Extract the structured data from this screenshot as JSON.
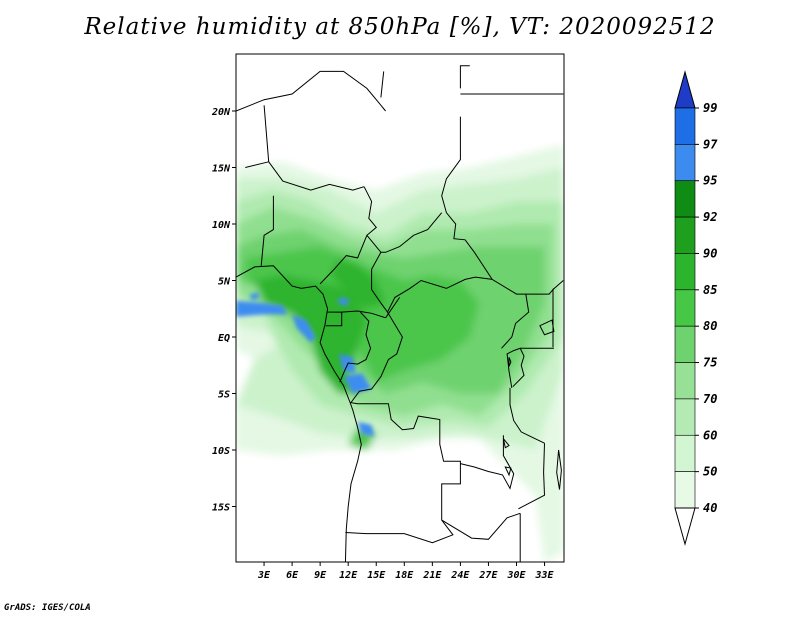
{
  "title": "Relative humidity at 850hPa [%], VT: 2020092512",
  "credit": "GrADS: IGES/COLA",
  "map": {
    "lon_range": [
      0,
      35
    ],
    "lat_range": [
      -20,
      24
    ],
    "lat_ticks": [
      {
        "value": 20,
        "label": "20N"
      },
      {
        "value": 15,
        "label": "15N"
      },
      {
        "value": 10,
        "label": "10N"
      },
      {
        "value": 5,
        "label": "5N"
      },
      {
        "value": 0,
        "label": "EQ"
      },
      {
        "value": -5,
        "label": "5S"
      },
      {
        "value": -10,
        "label": "10S"
      },
      {
        "value": -15,
        "label": "15S"
      }
    ],
    "lon_ticks": [
      {
        "value": 3,
        "label": "3E"
      },
      {
        "value": 6,
        "label": "6E"
      },
      {
        "value": 9,
        "label": "9E"
      },
      {
        "value": 12,
        "label": "12E"
      },
      {
        "value": 15,
        "label": "15E"
      },
      {
        "value": 18,
        "label": "18E"
      },
      {
        "value": 21,
        "label": "21E"
      },
      {
        "value": 24,
        "label": "24E"
      },
      {
        "value": 27,
        "label": "27E"
      },
      {
        "value": 30,
        "label": "30E"
      },
      {
        "value": 33,
        "label": "33E"
      }
    ]
  },
  "colorbar": {
    "levels": [
      {
        "label": "99",
        "color": "#1e6ee6"
      },
      {
        "label": "97",
        "color": "#3c8cf0"
      },
      {
        "label": "95",
        "color": "#0f8c14"
      },
      {
        "label": "92",
        "color": "#1ea01e"
      },
      {
        "label": "90",
        "color": "#2db42d"
      },
      {
        "label": "85",
        "color": "#46c846"
      },
      {
        "label": "80",
        "color": "#6ed26e"
      },
      {
        "label": "75",
        "color": "#96e196"
      },
      {
        "label": "70",
        "color": "#b4ebb4"
      },
      {
        "label": "60",
        "color": "#d2f5d2"
      },
      {
        "label": "50",
        "color": "#e6fae6"
      },
      {
        "label": "40",
        "color": "#ffffff"
      }
    ],
    "top_color": "#1e3cc8"
  },
  "field_colors": {
    "light": "#e4f8e4",
    "l60": "#ccf2cc",
    "l70": "#b0eab0",
    "l75": "#90df90",
    "l80": "#6ed26e",
    "l85": "#4cc64c",
    "l90": "#2db42d",
    "wet": "#3c8cf0",
    "border": "#000000"
  }
}
